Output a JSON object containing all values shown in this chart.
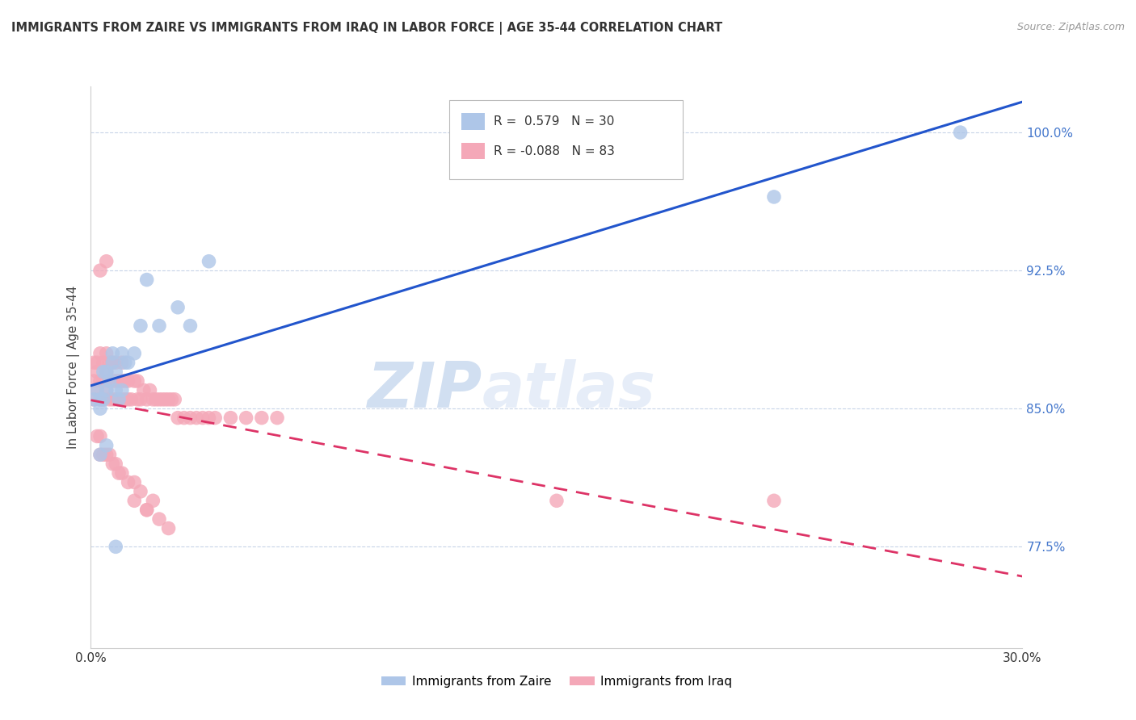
{
  "title": "IMMIGRANTS FROM ZAIRE VS IMMIGRANTS FROM IRAQ IN LABOR FORCE | AGE 35-44 CORRELATION CHART",
  "source": "Source: ZipAtlas.com",
  "ylabel": "In Labor Force | Age 35-44",
  "xlim": [
    0.0,
    0.3
  ],
  "ylim": [
    0.72,
    1.025
  ],
  "yticks": [
    0.775,
    0.85,
    0.925,
    1.0
  ],
  "ytick_labels": [
    "77.5%",
    "85.0%",
    "92.5%",
    "100.0%"
  ],
  "xticks": [
    0.0,
    0.05,
    0.1,
    0.15,
    0.2,
    0.25,
    0.3
  ],
  "xtick_labels": [
    "0.0%",
    "",
    "",
    "",
    "",
    "",
    "30.0%"
  ],
  "zaire_R": 0.579,
  "zaire_N": 30,
  "iraq_R": -0.088,
  "iraq_N": 83,
  "zaire_color": "#aec6e8",
  "iraq_color": "#f4a8b8",
  "zaire_line_color": "#2255cc",
  "iraq_line_color": "#dd3366",
  "background_color": "#ffffff",
  "grid_color": "#c8d4e8",
  "watermark_zip": "ZIP",
  "watermark_atlas": "atlas",
  "legend_label_zaire": "Immigrants from Zaire",
  "legend_label_iraq": "Immigrants from Iraq",
  "zaire_x": [
    0.001,
    0.002,
    0.003,
    0.003,
    0.004,
    0.004,
    0.005,
    0.005,
    0.006,
    0.007,
    0.007,
    0.008,
    0.008,
    0.009,
    0.01,
    0.01,
    0.011,
    0.012,
    0.014,
    0.016,
    0.018,
    0.022,
    0.028,
    0.032,
    0.038,
    0.003,
    0.005,
    0.008,
    0.22,
    0.28
  ],
  "zaire_y": [
    0.855,
    0.86,
    0.855,
    0.85,
    0.87,
    0.855,
    0.86,
    0.87,
    0.865,
    0.875,
    0.88,
    0.86,
    0.87,
    0.855,
    0.88,
    0.86,
    0.875,
    0.875,
    0.88,
    0.895,
    0.92,
    0.895,
    0.905,
    0.895,
    0.93,
    0.825,
    0.83,
    0.775,
    0.965,
    1.0
  ],
  "iraq_x": [
    0.001,
    0.001,
    0.001,
    0.002,
    0.002,
    0.002,
    0.003,
    0.003,
    0.003,
    0.004,
    0.004,
    0.004,
    0.005,
    0.005,
    0.005,
    0.006,
    0.006,
    0.006,
    0.007,
    0.007,
    0.007,
    0.008,
    0.008,
    0.008,
    0.009,
    0.009,
    0.01,
    0.01,
    0.01,
    0.011,
    0.011,
    0.012,
    0.012,
    0.013,
    0.014,
    0.015,
    0.015,
    0.016,
    0.017,
    0.018,
    0.019,
    0.02,
    0.021,
    0.022,
    0.023,
    0.024,
    0.025,
    0.026,
    0.027,
    0.028,
    0.03,
    0.032,
    0.034,
    0.036,
    0.038,
    0.04,
    0.045,
    0.05,
    0.055,
    0.06,
    0.002,
    0.003,
    0.003,
    0.004,
    0.005,
    0.006,
    0.007,
    0.008,
    0.009,
    0.01,
    0.012,
    0.014,
    0.016,
    0.018,
    0.02,
    0.025,
    0.014,
    0.018,
    0.022,
    0.15,
    0.003,
    0.005,
    0.22
  ],
  "iraq_y": [
    0.855,
    0.865,
    0.875,
    0.86,
    0.87,
    0.875,
    0.855,
    0.865,
    0.88,
    0.855,
    0.865,
    0.875,
    0.86,
    0.87,
    0.88,
    0.855,
    0.865,
    0.875,
    0.855,
    0.865,
    0.875,
    0.855,
    0.865,
    0.875,
    0.855,
    0.865,
    0.855,
    0.865,
    0.875,
    0.855,
    0.865,
    0.855,
    0.865,
    0.855,
    0.865,
    0.855,
    0.865,
    0.855,
    0.86,
    0.855,
    0.86,
    0.855,
    0.855,
    0.855,
    0.855,
    0.855,
    0.855,
    0.855,
    0.855,
    0.845,
    0.845,
    0.845,
    0.845,
    0.845,
    0.845,
    0.845,
    0.845,
    0.845,
    0.845,
    0.845,
    0.835,
    0.835,
    0.825,
    0.825,
    0.825,
    0.825,
    0.82,
    0.82,
    0.815,
    0.815,
    0.81,
    0.81,
    0.805,
    0.795,
    0.8,
    0.785,
    0.8,
    0.795,
    0.79,
    0.8,
    0.925,
    0.93,
    0.8
  ]
}
